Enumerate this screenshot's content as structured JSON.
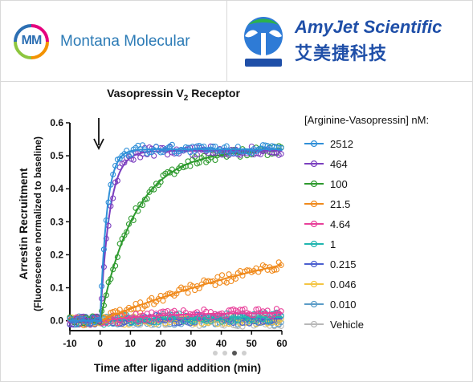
{
  "header": {
    "left_logo": {
      "mark": "MM",
      "name": "Montana Molecular",
      "colors": [
        "#e6007e",
        "#f39200",
        "#8dc63f",
        "#2c6fb3"
      ]
    },
    "right_logo": {
      "name": "AmyJet Scientific",
      "name_cn": "艾美捷科技",
      "icon": "amyjet-logo-icon",
      "color": "#1f4fa8"
    }
  },
  "chart_data": {
    "type": "line",
    "title": "Vasopressin V",
    "title_subscript": "2",
    "title_suffix": " Receptor",
    "xlabel": "Time after ligand addition (min)",
    "ylabel": "Arrestin Recruitment",
    "ylabel2": "(Fluorescence normalized to baseline)",
    "xlim": [
      -10,
      60
    ],
    "ylim": [
      -0.03,
      0.6
    ],
    "xticks": [
      "-10",
      "0",
      "10",
      "20",
      "30",
      "40",
      "50",
      "60"
    ],
    "yticks": [
      "0.0",
      "0.1",
      "0.2",
      "0.3",
      "0.4",
      "0.5",
      "0.6"
    ],
    "annotation": {
      "type": "arrow",
      "x": 0,
      "meaning": "ligand addition"
    },
    "legend_title": "[Arginine-Vasopressin] nM:",
    "legend_position": "right",
    "grid": false,
    "series": [
      {
        "name": "2512",
        "color": "#2f8fd8",
        "plateau": 0.52,
        "rate": 0.45
      },
      {
        "name": "464",
        "color": "#7b3fbf",
        "plateau": 0.515,
        "rate": 0.32
      },
      {
        "name": "100",
        "color": "#2e9a2e",
        "plateau": 0.52,
        "rate": 0.085
      },
      {
        "name": "21.5",
        "color": "#f08a1c",
        "plateau": 0.35,
        "rate": 0.011
      },
      {
        "name": "4.64",
        "color": "#e8409a",
        "plateau": 0.025,
        "rate": 0.05
      },
      {
        "name": "1",
        "color": "#20b6b0",
        "plateau": 0.012,
        "rate": 0.05
      },
      {
        "name": "0.215",
        "color": "#4a5fd0",
        "plateau": 0.006,
        "rate": 0.05
      },
      {
        "name": "0.046",
        "color": "#f4c542",
        "plateau": 0.003,
        "rate": 0.05
      },
      {
        "name": "0.010",
        "color": "#5a9bc8",
        "plateau": 0.0,
        "rate": 0.05
      },
      {
        "name": "Vehicle",
        "color": "#b8b8b8",
        "plateau": -0.005,
        "rate": 0.05
      }
    ]
  },
  "pager": {
    "count": 4,
    "active": 2
  }
}
